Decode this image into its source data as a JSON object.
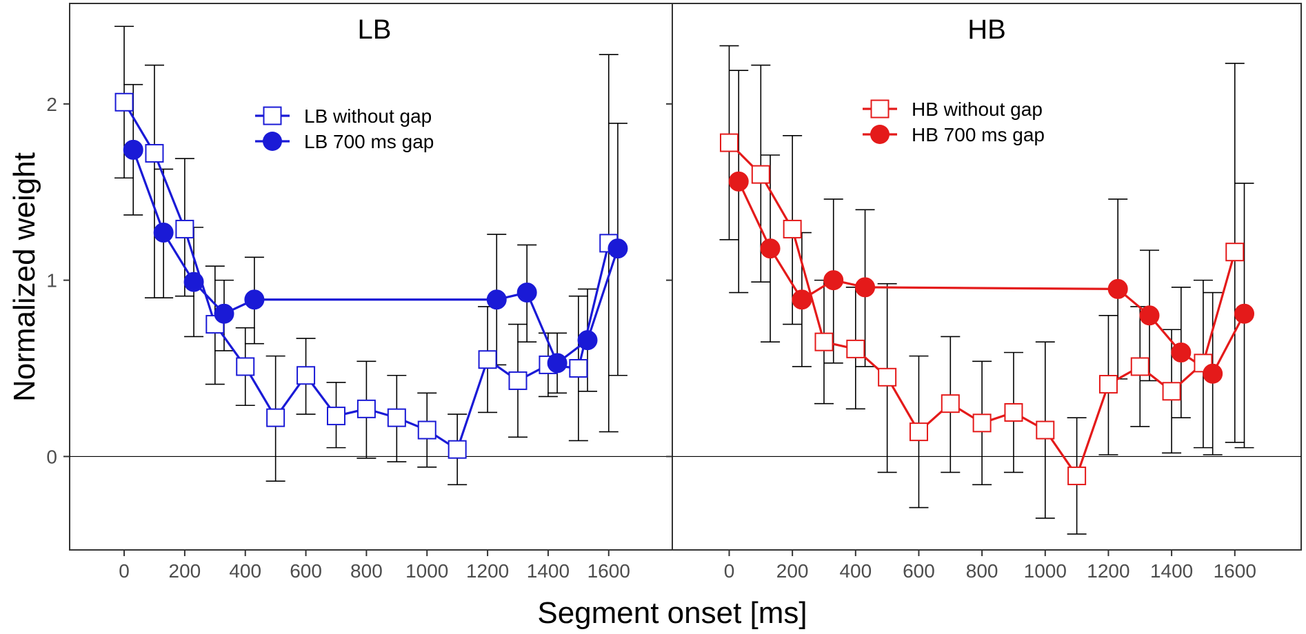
{
  "figure": {
    "ylabel": "Normalized weight",
    "xlabel": "Segment onset [ms]"
  },
  "chart_data": [
    {
      "type": "line",
      "title": "LB",
      "color": "#1a1ad6",
      "xlabel": "Segment onset [ms]",
      "ylabel": "Normalized weight",
      "xlim": [
        -180,
        1810
      ],
      "ylim": [
        -0.53,
        2.57
      ],
      "x_ticks": [
        0,
        200,
        400,
        600,
        800,
        1000,
        1200,
        1400,
        1600
      ],
      "y_ticks": [
        0,
        1,
        2
      ],
      "legend_position": "top-center",
      "series": [
        {
          "name": "LB without gap",
          "marker": "open-square",
          "x": [
            0,
            100,
            200,
            300,
            400,
            500,
            600,
            700,
            800,
            900,
            1000,
            1100,
            1200,
            1300,
            1400,
            1500,
            1600
          ],
          "y": [
            2.01,
            1.72,
            1.29,
            0.75,
            0.51,
            0.22,
            0.46,
            0.23,
            0.27,
            0.22,
            0.15,
            0.04,
            0.55,
            0.43,
            0.52,
            0.5,
            1.21
          ],
          "err_low": [
            1.58,
            0.9,
            0.91,
            0.41,
            0.29,
            -0.14,
            0.24,
            0.05,
            -0.01,
            -0.03,
            -0.06,
            -0.16,
            0.25,
            0.11,
            0.34,
            0.09,
            0.14
          ],
          "err_high": [
            2.44,
            2.22,
            1.69,
            1.08,
            0.73,
            0.57,
            0.67,
            0.42,
            0.54,
            0.46,
            0.36,
            0.24,
            0.85,
            0.75,
            0.7,
            0.91,
            2.28
          ]
        },
        {
          "name": "LB 700 ms gap",
          "marker": "filled-circle",
          "x": [
            30,
            130,
            230,
            330,
            430,
            1230,
            1330,
            1430,
            1530,
            1630
          ],
          "y": [
            1.74,
            1.27,
            0.99,
            0.81,
            0.89,
            0.89,
            0.93,
            0.53,
            0.66,
            1.18
          ],
          "err_low": [
            1.37,
            0.9,
            0.68,
            0.6,
            0.64,
            0.52,
            0.65,
            0.36,
            0.37,
            0.46
          ],
          "err_high": [
            2.11,
            1.63,
            1.3,
            1.0,
            1.13,
            1.26,
            1.2,
            0.7,
            0.95,
            1.89
          ]
        }
      ]
    },
    {
      "type": "line",
      "title": "HB",
      "color": "#e41a1a",
      "xlabel": "Segment onset [ms]",
      "ylabel": "Normalized weight",
      "xlim": [
        -180,
        1810
      ],
      "ylim": [
        -0.53,
        2.57
      ],
      "x_ticks": [
        0,
        200,
        400,
        600,
        800,
        1000,
        1200,
        1400,
        1600
      ],
      "y_ticks": [
        0,
        1,
        2
      ],
      "legend_position": "top-center",
      "series": [
        {
          "name": "HB without gap",
          "marker": "open-square",
          "x": [
            0,
            100,
            200,
            300,
            400,
            500,
            600,
            700,
            800,
            900,
            1000,
            1100,
            1200,
            1300,
            1400,
            1500,
            1600
          ],
          "y": [
            1.78,
            1.6,
            1.29,
            0.65,
            0.61,
            0.45,
            0.14,
            0.3,
            0.19,
            0.25,
            0.15,
            -0.11,
            0.41,
            0.51,
            0.37,
            0.53,
            1.16
          ],
          "err_low": [
            1.23,
            0.99,
            0.75,
            0.3,
            0.27,
            -0.09,
            -0.29,
            -0.09,
            -0.16,
            -0.09,
            -0.35,
            -0.44,
            0.01,
            0.17,
            0.02,
            0.05,
            0.08
          ],
          "err_high": [
            2.33,
            2.22,
            1.82,
            1.0,
            0.96,
            0.98,
            0.57,
            0.68,
            0.54,
            0.59,
            0.65,
            0.22,
            0.8,
            0.85,
            0.72,
            1.0,
            2.23
          ]
        },
        {
          "name": "HB 700 ms gap",
          "marker": "filled-circle",
          "x": [
            30,
            130,
            230,
            330,
            430,
            1230,
            1330,
            1430,
            1530,
            1630
          ],
          "y": [
            1.56,
            1.18,
            0.89,
            1.0,
            0.96,
            0.95,
            0.8,
            0.59,
            0.47,
            0.81
          ],
          "err_low": [
            0.93,
            0.65,
            0.51,
            0.53,
            0.51,
            0.44,
            0.43,
            0.22,
            0.01,
            0.05
          ],
          "err_high": [
            2.19,
            1.71,
            1.27,
            1.46,
            1.4,
            1.46,
            1.17,
            0.96,
            0.93,
            1.55
          ]
        }
      ]
    }
  ]
}
